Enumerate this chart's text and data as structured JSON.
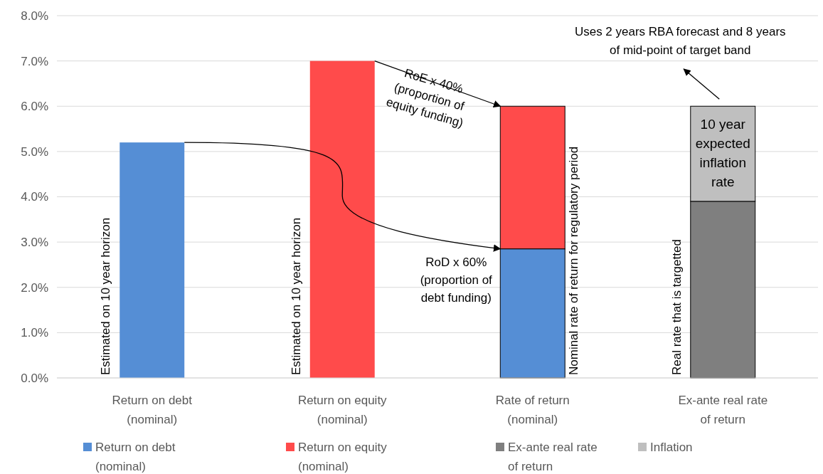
{
  "chart_data": {
    "type": "bar",
    "stacked": true,
    "categories": [
      "Return on debt\n(nominal)",
      "Return on equity\n(nominal)",
      "Rate of return\n(nominal)",
      "Ex-ante real rate\nof return"
    ],
    "series": [
      {
        "name": "Return on debt\n(nominal)",
        "color": "#558ed5",
        "values": [
          5.2,
          null,
          2.85,
          null
        ]
      },
      {
        "name": "Return on equity\n(nominal)",
        "color": "#ff4b4b",
        "values": [
          null,
          7.0,
          3.15,
          null
        ]
      },
      {
        "name": "Ex-ante real rate\nof return",
        "color": "#7f7f7f",
        "values": [
          null,
          null,
          null,
          3.9
        ]
      },
      {
        "name": "Inflation",
        "color": "#bfbfbf",
        "values": [
          null,
          null,
          null,
          2.1
        ]
      }
    ],
    "ylim": [
      0,
      8
    ],
    "yticks": [
      {
        "value": 0,
        "label": "0.0%"
      },
      {
        "value": 1,
        "label": "1.0%"
      },
      {
        "value": 2,
        "label": "2.0%"
      },
      {
        "value": 3,
        "label": "3.0%"
      },
      {
        "value": 4,
        "label": "4.0%"
      },
      {
        "value": 5,
        "label": "5.0%"
      },
      {
        "value": 6,
        "label": "6.0%"
      },
      {
        "value": 7,
        "label": "7.0%"
      },
      {
        "value": 8,
        "label": "8.0%"
      }
    ],
    "grid": "y",
    "legend": "bottom",
    "annotations": [
      "Estimated on 10 year horizon",
      "Estimated on 10 year horizon",
      "Nominal rate of return for regulatory period",
      "Real rate that is targetted",
      "RoE x 40%\n(proportion of\nequity funding)",
      "RoD x 60%\n(proportion of\ndebt funding)",
      "10 year\nexpected\ninflation\nrate",
      "Uses 2 years RBA forecast and 8 years\nof mid-point of target band"
    ]
  }
}
